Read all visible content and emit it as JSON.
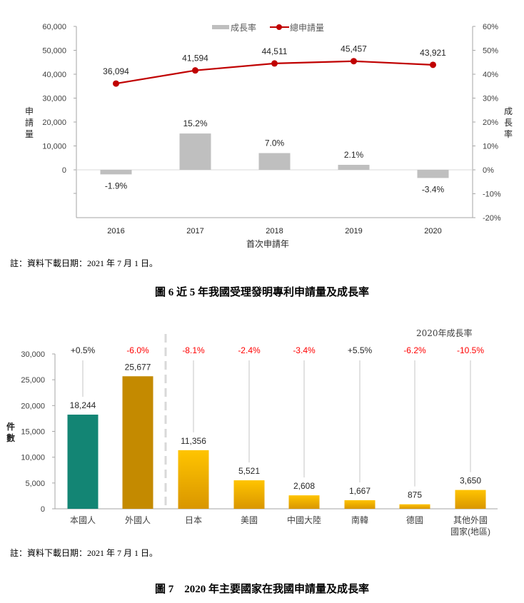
{
  "chart_data": [
    {
      "id": "fig6",
      "type": "bar+line",
      "title": "圖 6  近 5 年我國受理發明專利申請量及成長率",
      "note": "註：資料下載日期：2021 年 7 月 1 日。",
      "xlabel": "首次申請年",
      "ylabel_left": "申請量",
      "ylabel_right": "成長率",
      "categories": [
        "2016",
        "2017",
        "2018",
        "2019",
        "2020"
      ],
      "legend": [
        "成長率",
        "總申請量"
      ],
      "legend_position": "top",
      "series": [
        {
          "name": "總申請量",
          "type": "line",
          "axis": "left",
          "color": "#C00000",
          "values": [
            36094,
            41594,
            44511,
            45457,
            43921
          ],
          "labels": [
            "36,094",
            "41,594",
            "44,511",
            "45,457",
            "43,921"
          ]
        },
        {
          "name": "成長率",
          "type": "bar",
          "axis": "right",
          "color": "#BFBFBF",
          "values": [
            -1.9,
            15.2,
            7.0,
            2.1,
            -3.4
          ],
          "labels": [
            "-1.9%",
            "15.2%",
            "7.0%",
            "2.1%",
            "-3.4%"
          ]
        }
      ],
      "ylim_left": [
        -20000,
        60000
      ],
      "yticks_left": [
        "60,000",
        "50,000",
        "40,000",
        "30,000",
        "20,000",
        "10,000",
        "0"
      ],
      "ylim_right": [
        -20,
        60
      ],
      "yticks_right": [
        "60%",
        "50%",
        "40%",
        "30%",
        "20%",
        "10%",
        "0%",
        "-10%",
        "-20%"
      ],
      "grid": false
    },
    {
      "id": "fig7",
      "type": "bar",
      "title": "圖 7    2020 年主要國家在我國申請量及成長率",
      "note": "註：資料下載日期：2021 年 7 月 1 日。",
      "ylabel": "件數",
      "growth_header": "2020年成長率",
      "categories": [
        "本國人",
        "外國人",
        "日本",
        "美國",
        "中國大陸",
        "南韓",
        "德國",
        "其他外國國家(地區)"
      ],
      "category_lines": [
        [
          "本國人"
        ],
        [
          "外國人"
        ],
        [
          "日本"
        ],
        [
          "美國"
        ],
        [
          "中國大陸"
        ],
        [
          "南韓"
        ],
        [
          "德國"
        ],
        [
          "其他外國",
          "國家(地區)"
        ]
      ],
      "values": [
        18244,
        25677,
        11356,
        5521,
        2608,
        1667,
        875,
        3650
      ],
      "value_labels": [
        "18,244",
        "25,677",
        "11,356",
        "5,521",
        "2,608",
        "1,667",
        "875",
        "3,650"
      ],
      "growth": [
        "+0.5%",
        "-6.0%",
        "-8.1%",
        "-2.4%",
        "-3.4%",
        "+5.5%",
        "-6.2%",
        "-10.5%"
      ],
      "growth_colors": [
        "#262626",
        "#FF0000",
        "#FF0000",
        "#FF0000",
        "#FF0000",
        "#262626",
        "#FF0000",
        "#FF0000"
      ],
      "bar_colors": [
        "#138574",
        "#C48A00",
        "gradient-gold",
        "gradient-gold",
        "gradient-gold",
        "gradient-gold",
        "gradient-gold",
        "gradient-gold"
      ],
      "ylim": [
        0,
        30000
      ],
      "yticks": [
        "30,000",
        "25,000",
        "20,000",
        "15,000",
        "10,000",
        "5,000",
        "0"
      ],
      "grid": false
    }
  ],
  "fig6": {
    "legend_bar": "成長率",
    "legend_line": "總申請量",
    "ylabel_left": [
      "申",
      "請",
      "量"
    ],
    "ylabel_right": [
      "成",
      "長",
      "率"
    ],
    "xlabel": "首次申請年",
    "note": "註：資料下載日期：2021 年 7 月 1 日。",
    "caption": "圖 6  近 5 年我國受理發明專利申請量及成長率"
  },
  "fig7": {
    "growth_header": "2020年成長率",
    "ylabel": [
      "件",
      "數"
    ],
    "note": "註：資料下載日期：2021 年 7 月 1 日。",
    "caption": "圖 7    2020 年主要國家在我國申請量及成長率"
  }
}
